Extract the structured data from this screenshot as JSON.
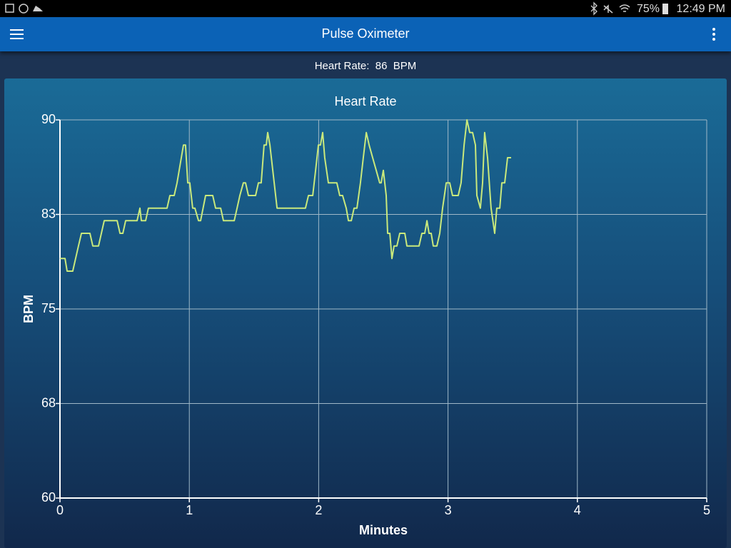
{
  "status_bar": {
    "battery": "75%",
    "time": "12:49 PM"
  },
  "app_bar": {
    "title": "Pulse Oximeter"
  },
  "reading": {
    "label": "Heart Rate:",
    "value": "86",
    "unit": "BPM"
  },
  "chart_data": {
    "type": "line",
    "title": "Heart Rate",
    "xlabel": "Minutes",
    "ylabel": "BPM",
    "color": "#c9e97c",
    "grid": true,
    "xlim": [
      0,
      5
    ],
    "xticks": [
      0,
      1,
      2,
      3,
      4,
      5
    ],
    "ylim": [
      60,
      90
    ],
    "yticks": [
      60,
      {
        "value": 67.5,
        "label": "68"
      },
      75,
      {
        "value": 82.5,
        "label": "83"
      },
      90
    ],
    "x": [
      0,
      0.039,
      0.055,
      0.099,
      0.121,
      0.143,
      0.166,
      0.188,
      0.232,
      0.254,
      0.298,
      0.32,
      0.342,
      0.442,
      0.464,
      0.486,
      0.508,
      0.596,
      0.618,
      0.629,
      0.662,
      0.684,
      0.828,
      0.85,
      0.883,
      0.905,
      0.938,
      0.955,
      0.971,
      0.988,
      1.004,
      1.026,
      1.043,
      1.071,
      1.087,
      1.126,
      1.181,
      1.203,
      1.242,
      1.264,
      1.347,
      1.369,
      1.391,
      1.418,
      1.435,
      1.457,
      1.512,
      1.534,
      1.556,
      1.578,
      1.595,
      1.606,
      1.623,
      1.634,
      1.656,
      1.678,
      1.898,
      1.921,
      1.954,
      1.976,
      1.998,
      2.014,
      2.031,
      2.047,
      2.075,
      2.141,
      2.163,
      2.185,
      2.213,
      2.23,
      2.252,
      2.274,
      2.296,
      2.323,
      2.345,
      2.368,
      2.39,
      2.417,
      2.445,
      2.472,
      2.483,
      2.5,
      2.522,
      2.533,
      2.55,
      2.566,
      2.583,
      2.605,
      2.627,
      2.666,
      2.682,
      2.776,
      2.798,
      2.82,
      2.837,
      2.853,
      2.87,
      2.886,
      2.914,
      2.936,
      2.958,
      2.986,
      3.013,
      3.035,
      3.079,
      3.101,
      3.124,
      3.146,
      3.168,
      3.19,
      3.212,
      3.223,
      3.25,
      3.267,
      3.283,
      3.306,
      3.333,
      3.361,
      3.377,
      3.4,
      3.416,
      3.438,
      3.46,
      3.488
    ],
    "values": [
      79,
      79,
      78,
      78,
      79,
      80,
      81,
      81,
      81,
      80,
      80,
      81,
      82,
      82,
      81,
      81,
      82,
      82,
      83,
      82,
      82,
      83,
      83,
      84,
      84,
      85,
      87,
      88,
      88,
      85,
      85,
      83,
      83,
      82,
      82,
      84,
      84,
      83,
      83,
      82,
      82,
      83,
      84,
      85,
      85,
      84,
      84,
      85,
      85,
      88,
      88,
      89,
      88,
      87,
      85,
      83,
      83,
      84,
      84,
      86,
      88,
      88,
      89,
      87,
      85,
      85,
      84,
      84,
      83,
      82,
      82,
      83,
      83,
      85,
      87,
      89,
      88,
      87,
      86,
      85,
      85,
      86,
      84,
      81,
      81,
      79,
      80,
      80,
      81,
      81,
      80,
      80,
      81,
      81,
      82,
      81,
      81,
      80,
      80,
      81,
      83,
      85,
      85,
      84,
      84,
      85,
      88,
      90,
      89,
      89,
      88,
      84,
      83,
      85,
      89,
      87,
      83,
      81,
      83,
      83,
      85,
      85,
      87,
      87
    ]
  }
}
